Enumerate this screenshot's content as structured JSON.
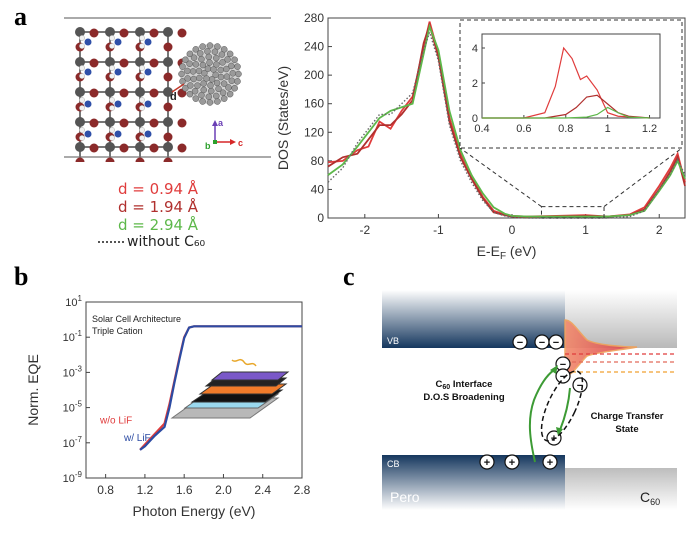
{
  "panels": {
    "a": {
      "letter": "a"
    },
    "b": {
      "letter": "b"
    },
    "c": {
      "letter": "c"
    }
  },
  "structure": {
    "d_marker": "d",
    "axis_a": "a",
    "axis_b": "b",
    "axis_c": "c"
  },
  "legend_a": {
    "items": [
      {
        "label": "d = 0.94 Å",
        "color": "#e03c3c"
      },
      {
        "label": "d = 1.94 Å",
        "color": "#b0302e"
      },
      {
        "label": "d = 2.94 Å",
        "color": "#5db84a"
      },
      {
        "label": "without C₆₀",
        "color": "#555555",
        "dotted": true
      }
    ]
  },
  "chart_data": [
    {
      "type": "line",
      "ylabel": "DOS (States/eV)",
      "xlabel": "E-E_F (eV)",
      "xlim": [
        -2.5,
        2.35
      ],
      "ylim": [
        0,
        280
      ],
      "xticks": [
        -2,
        -1,
        0,
        1,
        2
      ],
      "yticks": [
        0,
        40,
        80,
        120,
        160,
        200,
        240,
        280
      ],
      "series": [
        {
          "color": "#e03c3c",
          "x": [
            -2.5,
            -2.3,
            -2.1,
            -1.95,
            -1.8,
            -1.65,
            -1.5,
            -1.35,
            -1.2,
            -1.12,
            -1.0,
            -0.85,
            -0.7,
            -0.55,
            -0.4,
            -0.25,
            -0.1,
            0.0,
            0.2,
            0.6,
            1.0,
            1.3,
            1.6,
            1.8,
            2.0,
            2.15,
            2.25,
            2.35
          ],
          "y": [
            78,
            80,
            95,
            100,
            135,
            125,
            150,
            170,
            240,
            275,
            230,
            140,
            90,
            60,
            30,
            10,
            5,
            3,
            2,
            3,
            4,
            2,
            5,
            15,
            45,
            70,
            90,
            50
          ]
        },
        {
          "color": "#b0302e",
          "x": [
            -2.5,
            -2.3,
            -2.1,
            -1.95,
            -1.8,
            -1.65,
            -1.5,
            -1.35,
            -1.2,
            -1.12,
            -1.0,
            -0.85,
            -0.7,
            -0.55,
            -0.4,
            -0.25,
            -0.1,
            0.0,
            0.2,
            0.6,
            1.0,
            1.3,
            1.6,
            1.8,
            2.0,
            2.15,
            2.25,
            2.35
          ],
          "y": [
            72,
            85,
            90,
            110,
            130,
            130,
            145,
            165,
            245,
            270,
            225,
            135,
            85,
            55,
            28,
            8,
            4,
            2,
            1,
            2,
            3,
            2,
            4,
            12,
            40,
            65,
            85,
            45
          ]
        },
        {
          "color": "#5db84a",
          "x": [
            -2.5,
            -2.3,
            -2.1,
            -1.95,
            -1.8,
            -1.65,
            -1.5,
            -1.35,
            -1.2,
            -1.12,
            -1.0,
            -0.85,
            -0.7,
            -0.55,
            -0.4,
            -0.25,
            -0.1,
            0.0,
            0.2,
            0.6,
            1.0,
            1.3,
            1.6,
            1.8,
            2.0,
            2.15,
            2.25,
            2.35
          ],
          "y": [
            60,
            75,
            100,
            120,
            140,
            150,
            155,
            160,
            230,
            268,
            235,
            150,
            95,
            60,
            35,
            15,
            6,
            3,
            2,
            2,
            2,
            2,
            4,
            10,
            38,
            60,
            80,
            55
          ]
        },
        {
          "color": "#666666",
          "dotted": true,
          "x": [
            -2.5,
            -2.3,
            -2.1,
            -1.95,
            -1.8,
            -1.65,
            -1.5,
            -1.35,
            -1.2,
            -1.12,
            -1.0,
            -0.85,
            -0.7,
            -0.55,
            -0.4,
            -0.25,
            -0.1,
            0.0,
            0.2,
            0.6,
            1.0,
            1.3,
            1.6,
            1.8,
            2.0,
            2.15,
            2.25,
            2.35
          ],
          "y": [
            50,
            70,
            105,
            125,
            145,
            145,
            160,
            175,
            235,
            260,
            220,
            130,
            80,
            50,
            25,
            8,
            3,
            1,
            0,
            0,
            0,
            0,
            2,
            10,
            40,
            62,
            82,
            60
          ]
        }
      ]
    },
    {
      "type": "line",
      "inset": true,
      "xlim": [
        0.4,
        1.25
      ],
      "ylim": [
        0,
        4.8
      ],
      "xticks": [
        0.4,
        0.6,
        0.8,
        1.0,
        1.2
      ],
      "xticklabels": [
        "0.4",
        "0.6",
        "0.8",
        "1",
        "1.2"
      ],
      "yticks": [
        0,
        2,
        4
      ],
      "series": [
        {
          "color": "#e03c3c",
          "x": [
            0.4,
            0.6,
            0.7,
            0.75,
            0.79,
            0.83,
            0.87,
            0.9,
            0.95,
            1.0,
            1.05,
            1.2
          ],
          "y": [
            0,
            0,
            0.3,
            1.8,
            4.0,
            3.4,
            2.2,
            2.4,
            1.6,
            0.3,
            0.1,
            0
          ]
        },
        {
          "color": "#b0302e",
          "x": [
            0.4,
            0.7,
            0.8,
            0.85,
            0.9,
            0.95,
            1.0,
            1.05,
            1.1,
            1.2
          ],
          "y": [
            0,
            0,
            0.2,
            0.6,
            1.2,
            1.3,
            0.8,
            0.3,
            0.1,
            0
          ]
        },
        {
          "color": "#5db84a",
          "x": [
            0.4,
            0.8,
            0.9,
            0.95,
            1.0,
            1.05,
            1.1,
            1.2
          ],
          "y": [
            0,
            0,
            0.05,
            0.2,
            0.6,
            0.3,
            0.05,
            0
          ]
        }
      ]
    },
    {
      "type": "line",
      "ylabel": "Norm. EQE",
      "xlabel": "Photon Energy (eV)",
      "xlim": [
        0.6,
        2.8
      ],
      "ylog": true,
      "ylim": [
        1e-09,
        10
      ],
      "xticks": [
        0.8,
        1.2,
        1.6,
        2.0,
        2.4,
        2.8
      ],
      "xticklabels": [
        "0.8",
        "1.2",
        "1.6",
        "2.0",
        "2.4",
        "2.8"
      ],
      "yticks": [
        -9,
        -7,
        -5,
        -3,
        -1,
        1
      ],
      "annotation": [
        "Solar Cell Architecture",
        "Triple Cation"
      ],
      "series": [
        {
          "name": "w/o LiF",
          "color": "#e03c3c",
          "x": [
            1.15,
            1.2,
            1.25,
            1.3,
            1.35,
            1.4,
            1.45,
            1.5,
            1.55,
            1.6,
            1.65,
            1.7,
            2.0,
            2.5,
            2.8
          ],
          "y": [
            -7.4,
            -7.1,
            -6.8,
            -6.5,
            -6.2,
            -5.9,
            -4.8,
            -3.5,
            -2.2,
            -1.0,
            -0.45,
            -0.38,
            -0.38,
            -0.38,
            -0.38
          ]
        },
        {
          "name": "w/ LiF",
          "color": "#2c4ba3",
          "x": [
            1.15,
            1.2,
            1.25,
            1.3,
            1.35,
            1.4,
            1.45,
            1.5,
            1.55,
            1.6,
            1.65,
            1.7,
            2.0,
            2.5,
            2.8
          ],
          "y": [
            -7.4,
            -7.2,
            -6.9,
            -6.6,
            -6.35,
            -6.1,
            -5.0,
            -3.6,
            -2.3,
            -1.05,
            -0.45,
            -0.38,
            -0.38,
            -0.38,
            -0.38
          ]
        }
      ]
    }
  ],
  "diagram_c": {
    "vb_label": "VB",
    "cb_label": "CB",
    "left_label": "Pero",
    "right_label": "C",
    "right_sub": "60",
    "interface_line1_prefix": "C",
    "interface_line1_sub": "60",
    "interface_line1_suffix": " Interface",
    "interface_line2": "D.O.S Broadening",
    "ct_line1": "Charge Transfer",
    "ct_line2": "State",
    "minus": "−",
    "plus": "+"
  }
}
